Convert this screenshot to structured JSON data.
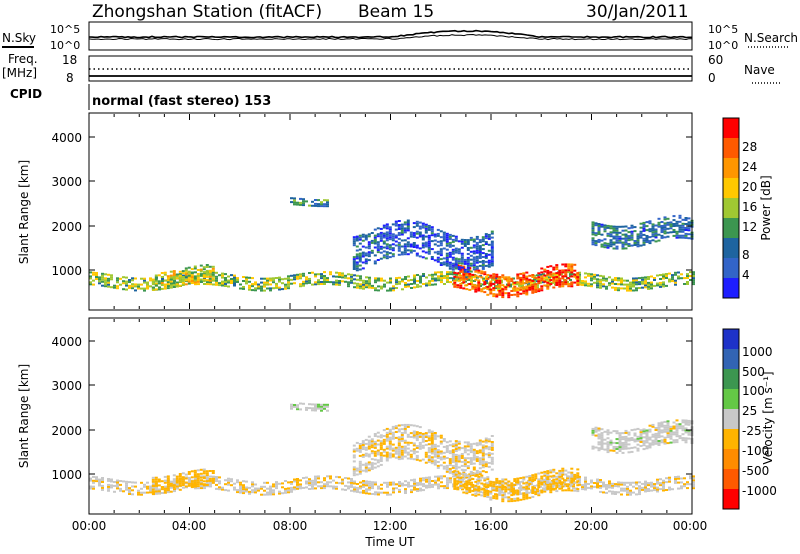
{
  "header": {
    "station": "Zhongshan Station (fitACF)",
    "beam": "Beam 15",
    "date": "30/Jan/2011"
  },
  "strip_noise": {
    "left_label": "N.Sky",
    "right_label": "N.Search",
    "left_ticks": [
      "10^5",
      "10^0"
    ],
    "right_ticks": [
      "10^5",
      "10^0"
    ]
  },
  "strip_freq": {
    "left_label_1": "Freq.",
    "left_label_2": "[MHz]",
    "right_label": "Nave",
    "left_ticks": [
      "18",
      "8"
    ],
    "right_ticks": [
      "60",
      "0"
    ]
  },
  "strip_cpid": {
    "label": "CPID",
    "text": "normal (fast stereo) 153"
  },
  "axes": {
    "ylabel": "Slant Range [km]",
    "xlabel": "Time UT",
    "yticks": [
      "4000",
      "3000",
      "2000",
      "1000"
    ],
    "xticks": [
      "00:00",
      "04:00",
      "08:00",
      "12:00",
      "16:00",
      "20:00",
      "00:00"
    ]
  },
  "power_colorbar": {
    "label": "Power [dB]",
    "ticks": [
      "28",
      "24",
      "20",
      "16",
      "12",
      "8",
      "4"
    ],
    "colors": [
      "#ff0000",
      "#ff5a00",
      "#ff9600",
      "#ffc800",
      "#a0c832",
      "#3c9650",
      "#1e64a0",
      "#3264c8",
      "#1e1eff"
    ]
  },
  "velocity_colorbar": {
    "label": "Velocity [m s⁻¹]",
    "ticks": [
      "1000",
      "500",
      "100",
      "25",
      "-25",
      "-100",
      "-500",
      "-1000"
    ],
    "colors": [
      "#1e32c8",
      "#3264b4",
      "#3c9650",
      "#64c846",
      "#c8c8c8",
      "#ffb400",
      "#ff8c00",
      "#ff5a00",
      "#ff0000"
    ]
  },
  "chart_data": {
    "type": "heatmap",
    "title": "Zhongshan Station (fitACF)",
    "x_range": [
      "00:00",
      "24:00"
    ],
    "y_range": [
      180,
      4600
    ],
    "power_range": [
      0,
      30
    ],
    "velocity_range": [
      -1000,
      1000
    ],
    "scatter_bands": [
      {
        "start_h": 0.0,
        "end_h": 24.0,
        "center_km": 800,
        "width_km": 300,
        "power": 14,
        "velocity": -60
      },
      {
        "start_h": 2.5,
        "end_h": 5.0,
        "center_km": 900,
        "width_km": 400,
        "power": 16,
        "velocity": -200
      },
      {
        "start_h": 14.5,
        "end_h": 19.5,
        "center_km": 800,
        "width_km": 500,
        "power": 26,
        "velocity": -180
      },
      {
        "start_h": 20.0,
        "end_h": 24.0,
        "center_km": 1900,
        "width_km": 500,
        "power": 8,
        "velocity": 0
      },
      {
        "start_h": 8.0,
        "end_h": 9.5,
        "center_km": 2600,
        "width_km": 150,
        "power": 10,
        "velocity": 80
      },
      {
        "start_h": 10.5,
        "end_h": 16.0,
        "center_km": 1600,
        "width_km": 800,
        "power": 6,
        "velocity": -60
      }
    ]
  }
}
